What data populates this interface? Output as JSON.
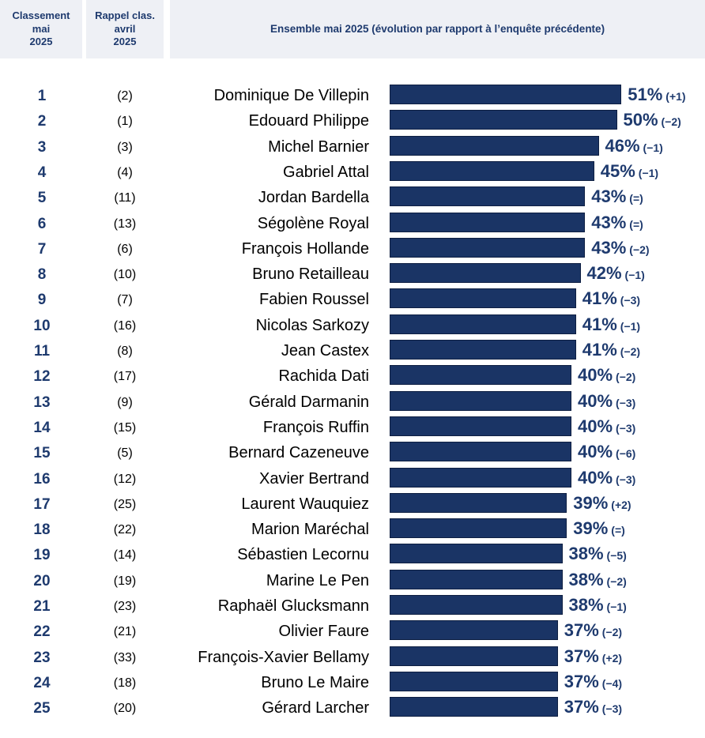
{
  "headers": {
    "rank": "Classement\nmai\n2025",
    "previous": "Rappel clas.\navril\n2025",
    "main": "Ensemble mai 2025 (évolution par rapport à l’enquête précédente)"
  },
  "colors": {
    "bar": "#1a3465",
    "text_accent": "#1e3a6e",
    "header_bg": "#eef0f5"
  },
  "chart_data": {
    "type": "bar",
    "orientation": "horizontal",
    "title": "Ensemble mai 2025 (évolution par rapport à l’enquête précédente)",
    "unit": "%",
    "xlim": [
      0,
      100
    ],
    "rows": [
      {
        "rank": "1",
        "previous": "(2)",
        "name": "Dominique De Villepin",
        "value": 51,
        "label": "51%",
        "change": "(+1)"
      },
      {
        "rank": "2",
        "previous": "(1)",
        "name": "Edouard Philippe",
        "value": 50,
        "label": "50%",
        "change": "(−2)"
      },
      {
        "rank": "3",
        "previous": "(3)",
        "name": "Michel Barnier",
        "value": 46,
        "label": "46%",
        "change": "(−1)"
      },
      {
        "rank": "4",
        "previous": "(4)",
        "name": "Gabriel Attal",
        "value": 45,
        "label": "45%",
        "change": "(−1)"
      },
      {
        "rank": "5",
        "previous": "(11)",
        "name": "Jordan Bardella",
        "value": 43,
        "label": "43%",
        "change": "(=)"
      },
      {
        "rank": "6",
        "previous": "(13)",
        "name": "Ségolène Royal",
        "value": 43,
        "label": "43%",
        "change": "(=)"
      },
      {
        "rank": "7",
        "previous": "(6)",
        "name": "François Hollande",
        "value": 43,
        "label": "43%",
        "change": "(−2)"
      },
      {
        "rank": "8",
        "previous": "(10)",
        "name": "Bruno Retailleau",
        "value": 42,
        "label": "42%",
        "change": "(−1)"
      },
      {
        "rank": "9",
        "previous": "(7)",
        "name": "Fabien Roussel",
        "value": 41,
        "label": "41%",
        "change": "(−3)"
      },
      {
        "rank": "10",
        "previous": "(16)",
        "name": "Nicolas Sarkozy",
        "value": 41,
        "label": "41%",
        "change": "(−1)"
      },
      {
        "rank": "11",
        "previous": "(8)",
        "name": "Jean Castex",
        "value": 41,
        "label": "41%",
        "change": "(−2)"
      },
      {
        "rank": "12",
        "previous": "(17)",
        "name": "Rachida Dati",
        "value": 40,
        "label": "40%",
        "change": "(−2)"
      },
      {
        "rank": "13",
        "previous": "(9)",
        "name": "Gérald Darmanin",
        "value": 40,
        "label": "40%",
        "change": "(−3)"
      },
      {
        "rank": "14",
        "previous": "(15)",
        "name": "François Ruffin",
        "value": 40,
        "label": "40%",
        "change": "(−3)"
      },
      {
        "rank": "15",
        "previous": "(5)",
        "name": "Bernard Cazeneuve",
        "value": 40,
        "label": "40%",
        "change": "(−6)"
      },
      {
        "rank": "16",
        "previous": "(12)",
        "name": "Xavier Bertrand",
        "value": 40,
        "label": "40%",
        "change": "(−3)"
      },
      {
        "rank": "17",
        "previous": "(25)",
        "name": "Laurent Wauquiez",
        "value": 39,
        "label": "39%",
        "change": "(+2)"
      },
      {
        "rank": "18",
        "previous": "(22)",
        "name": "Marion Maréchal",
        "value": 39,
        "label": "39%",
        "change": "(=)"
      },
      {
        "rank": "19",
        "previous": "(14)",
        "name": "Sébastien Lecornu",
        "value": 38,
        "label": "38%",
        "change": "(−5)"
      },
      {
        "rank": "20",
        "previous": "(19)",
        "name": "Marine Le Pen",
        "value": 38,
        "label": "38%",
        "change": "(−2)"
      },
      {
        "rank": "21",
        "previous": "(23)",
        "name": "Raphaël Glucksmann",
        "value": 38,
        "label": "38%",
        "change": "(−1)"
      },
      {
        "rank": "22",
        "previous": "(21)",
        "name": "Olivier Faure",
        "value": 37,
        "label": "37%",
        "change": "(−2)"
      },
      {
        "rank": "23",
        "previous": "(33)",
        "name": "François-Xavier Bellamy",
        "value": 37,
        "label": "37%",
        "change": "(+2)"
      },
      {
        "rank": "24",
        "previous": "(18)",
        "name": "Bruno Le Maire",
        "value": 37,
        "label": "37%",
        "change": "(−4)"
      },
      {
        "rank": "25",
        "previous": "(20)",
        "name": "Gérard Larcher",
        "value": 37,
        "label": "37%",
        "change": "(−3)"
      }
    ]
  }
}
